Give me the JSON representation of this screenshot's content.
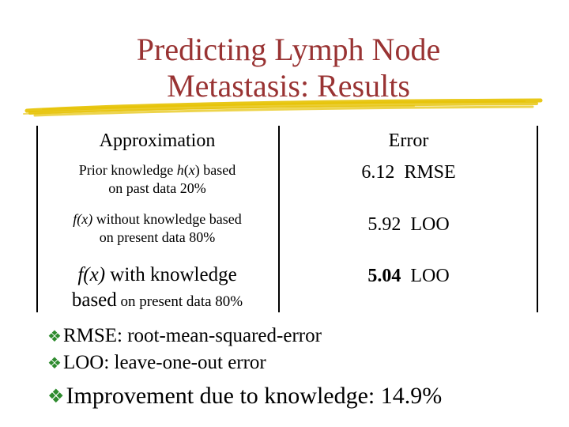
{
  "slide": {
    "title_line1": "Predicting Lymph Node",
    "title_line2": "Metastasis: Results",
    "accent_color": "#993333",
    "underline_color": "#e6c200",
    "bullet_icon": "diamond-bullet-icon",
    "bullet_color": "#2e8b2e"
  },
  "table": {
    "header": {
      "approximation": "Approximation",
      "error": "Error"
    },
    "rows": [
      {
        "approx_line1_a": "Prior  knowledge ",
        "approx_line1_h": "h",
        "approx_line1_b": "(",
        "approx_line1_x": "x",
        "approx_line1_c": ") based",
        "approx_line2": "on past data 20%",
        "error_value": "6.12",
        "error_metric": "RMSE"
      },
      {
        "approx_line1_f": "f(x)",
        "approx_line1_rest": " without knowledge based",
        "approx_line2": "on present data 80%",
        "error_value": "5.92",
        "error_metric": "LOO"
      },
      {
        "approx_line1_f": "f(x)",
        "approx_line1_rest": " with knowledge",
        "approx_line2_big": "based",
        "approx_line2_small": " on present data 80%",
        "error_value": "5.04",
        "error_metric": "LOO"
      }
    ]
  },
  "bullets": [
    "RMSE: root-mean-squared-error",
    "LOO: leave-one-out error",
    "Improvement due to knowledge: 14.9%"
  ]
}
